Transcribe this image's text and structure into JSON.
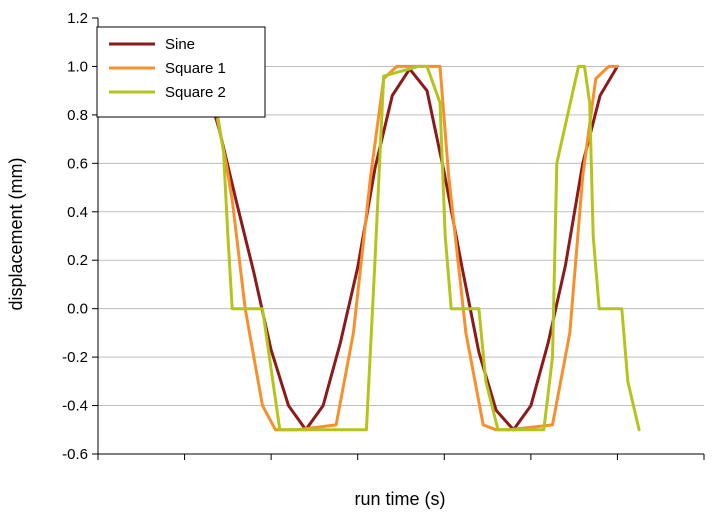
{
  "chart_data": {
    "type": "line",
    "xlabel": "run time (s)",
    "ylabel": "displacement (mm)",
    "ylim": [
      -0.6,
      1.2
    ],
    "yticks": [
      "1.2",
      "1.0",
      "0.8",
      "0.6",
      "0.4",
      "0.2",
      "0.0",
      "-0.2",
      "-0.4",
      "-0.6"
    ],
    "xlim": [
      0,
      7
    ],
    "x_tick_labels": "none",
    "grid": "horizontal",
    "legend": "top-left",
    "series": [
      {
        "name": "Sine",
        "color": "#8b1a1a",
        "x": [
          1.31,
          1.4,
          1.6,
          1.8,
          2.0,
          2.2,
          2.4,
          2.6,
          2.8,
          3.0,
          3.2,
          3.4,
          3.6,
          3.8,
          4.0,
          4.2,
          4.4,
          4.6,
          4.8,
          5.0,
          5.2,
          5.4,
          5.6,
          5.8,
          6.0
        ],
        "y": [
          0.85,
          0.74,
          0.44,
          0.15,
          -0.17,
          -0.4,
          -0.5,
          -0.4,
          -0.14,
          0.17,
          0.58,
          0.88,
          0.99,
          0.9,
          0.56,
          0.18,
          -0.18,
          -0.42,
          -0.5,
          -0.4,
          -0.14,
          0.18,
          0.6,
          0.88,
          1.0
        ]
      },
      {
        "name": "Square 1",
        "color": "#f7902c",
        "x": [
          1.38,
          1.48,
          1.55,
          1.7,
          1.9,
          2.05,
          2.2,
          2.3,
          2.75,
          2.95,
          3.15,
          3.3,
          3.45,
          3.6,
          3.95,
          4.05,
          4.25,
          4.45,
          4.6,
          4.75,
          5.25,
          5.45,
          5.6,
          5.75,
          5.9,
          6.0
        ],
        "y": [
          0.78,
          0.6,
          0.45,
          0.0,
          -0.4,
          -0.5,
          -0.5,
          -0.5,
          -0.48,
          -0.1,
          0.55,
          0.95,
          1.0,
          1.0,
          1.0,
          0.55,
          -0.1,
          -0.48,
          -0.5,
          -0.5,
          -0.48,
          -0.1,
          0.55,
          0.95,
          1.0,
          1.0
        ]
      },
      {
        "name": "Square 2",
        "color": "#b5c41c",
        "x": [
          1.38,
          1.45,
          1.5,
          1.55,
          1.62,
          1.9,
          1.98,
          2.1,
          2.5,
          2.7,
          2.76,
          2.85,
          3.1,
          3.2,
          3.3,
          3.7,
          3.8,
          3.95,
          4.01,
          4.08,
          4.4,
          4.48,
          4.62,
          4.95,
          5.15,
          5.25,
          5.3,
          5.55,
          5.62,
          5.68,
          5.72,
          5.79,
          6.05,
          6.12,
          6.25
        ],
        "y": [
          0.8,
          0.65,
          0.3,
          0.0,
          0.0,
          0.0,
          -0.2,
          -0.5,
          -0.5,
          -0.5,
          -0.5,
          -0.5,
          -0.5,
          0.2,
          0.96,
          1.0,
          1.0,
          0.85,
          0.3,
          0.0,
          0.0,
          -0.3,
          -0.5,
          -0.5,
          -0.5,
          -0.2,
          0.6,
          1.0,
          1.0,
          0.85,
          0.3,
          0.0,
          0.0,
          -0.3,
          -0.5
        ]
      }
    ]
  }
}
